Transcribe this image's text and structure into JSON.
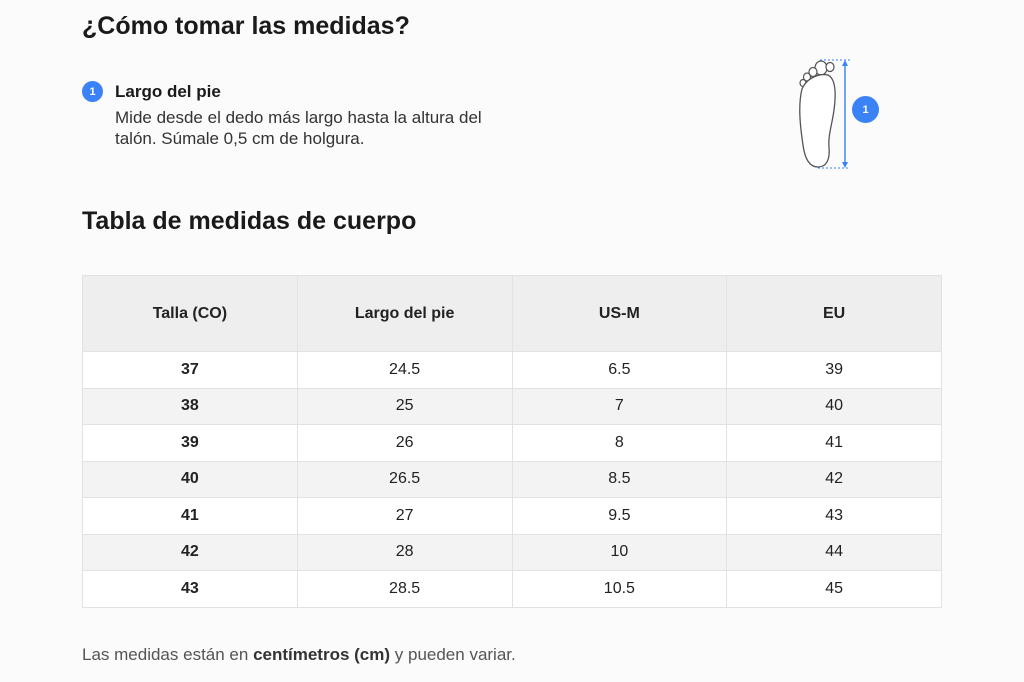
{
  "header": {
    "title": "¿Cómo tomar las medidas?"
  },
  "step": {
    "number": "1",
    "title": "Largo del pie",
    "description": "Mide desde el dedo más largo hasta la altura del talón. Súmale 0,5 cm de holgura."
  },
  "illustration": {
    "badge": "1",
    "icon": "foot-icon",
    "accent": "#3b82f6"
  },
  "table": {
    "title": "Tabla de medidas de cuerpo",
    "headers": [
      "Talla (CO)",
      "Largo del pie",
      "US-M",
      "EU"
    ],
    "rows": [
      [
        "37",
        "24.5",
        "6.5",
        "39"
      ],
      [
        "38",
        "25",
        "7",
        "40"
      ],
      [
        "39",
        "26",
        "8",
        "41"
      ],
      [
        "40",
        "26.5",
        "8.5",
        "42"
      ],
      [
        "41",
        "27",
        "9.5",
        "43"
      ],
      [
        "42",
        "28",
        "10",
        "44"
      ],
      [
        "43",
        "28.5",
        "10.5",
        "45"
      ]
    ]
  },
  "note": {
    "prefix": "Las medidas están en ",
    "bold": "centímetros (cm)",
    "suffix": " y pueden variar."
  }
}
